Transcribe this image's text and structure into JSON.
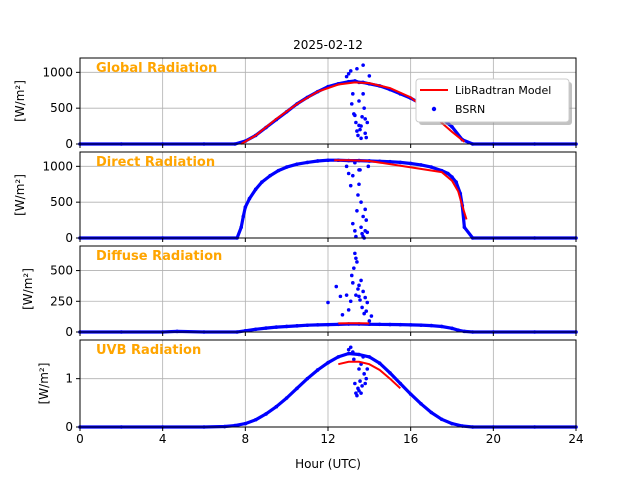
{
  "figure": {
    "title": "2025-02-12",
    "xlabel": "Hour (UTC)",
    "xticks": [
      "0",
      "4",
      "8",
      "12",
      "16",
      "20",
      "24"
    ],
    "legend": {
      "model_label": "LibRadtran Model",
      "obs_label": "BSRN",
      "placement": "upper-right of first panel"
    },
    "colors": {
      "model": "#ff0000",
      "obs": "#0000ff",
      "panel_title": "#ffa500",
      "grid": "#b0b0b0"
    }
  },
  "chart_data": [
    {
      "type": "scatter",
      "title": "Global Radiation",
      "ylabel": "[W/m²]",
      "xlim": [
        0,
        24
      ],
      "ylim": [
        0,
        1200
      ],
      "yticks": [
        "0",
        "500",
        "1000"
      ],
      "grid": true,
      "series": [
        {
          "name": "LibRadtran Model",
          "style": "line",
          "x": [
            7.8,
            8.5,
            9.5,
            10.5,
            11.5,
            12.5,
            13.3,
            14.0,
            15.0,
            16.0,
            17.0,
            18.0,
            18.6
          ],
          "y": [
            0,
            120,
            350,
            560,
            730,
            830,
            860,
            850,
            780,
            650,
            420,
            170,
            30
          ]
        },
        {
          "name": "BSRN",
          "style": "points",
          "x": [
            0,
            2,
            4,
            6,
            7.5,
            8,
            8.5,
            9,
            9.5,
            10,
            10.5,
            11,
            11.5,
            12,
            12.5,
            13,
            13.3,
            13.5,
            13.7,
            14,
            14.5,
            15,
            15.5,
            16,
            16.5,
            17,
            17.5,
            18,
            18.5,
            19,
            20,
            22,
            24
          ],
          "y": [
            0,
            0,
            0,
            0,
            0,
            40,
            120,
            230,
            340,
            450,
            560,
            650,
            730,
            800,
            840,
            870,
            880,
            860,
            860,
            840,
            810,
            760,
            700,
            640,
            560,
            470,
            360,
            240,
            60,
            0,
            0,
            0,
            0
          ],
          "scatter_x": [
            12.9,
            13.0,
            13.1,
            13.2,
            13.3,
            13.35,
            13.4,
            13.45,
            13.5,
            13.55,
            13.6,
            13.65,
            13.7,
            13.75,
            13.8,
            13.85,
            13.9,
            14.0,
            13.15,
            13.25,
            13.5,
            13.6,
            13.7,
            13.8,
            13.4
          ],
          "scatter_y": [
            940,
            980,
            1020,
            700,
            400,
            300,
            180,
            120,
            600,
            200,
            250,
            380,
            1100,
            500,
            150,
            90,
            300,
            950,
            560,
            420,
            260,
            80,
            700,
            350,
            1050
          ]
        }
      ]
    },
    {
      "type": "scatter",
      "title": "Direct Radiation",
      "ylabel": "[W/m²]",
      "xlim": [
        0,
        24
      ],
      "ylim": [
        0,
        1200
      ],
      "yticks": [
        "0",
        "500",
        "1000"
      ],
      "grid": true,
      "series": [
        {
          "name": "LibRadtran Model",
          "style": "line",
          "x": [
            12.3,
            13.0,
            13.6,
            14.0,
            17.5,
            18.0,
            18.3,
            18.5,
            18.7
          ],
          "y": [
            1085,
            1085,
            1080,
            1075,
            920,
            800,
            650,
            450,
            260
          ]
        },
        {
          "name": "BSRN",
          "style": "points",
          "x": [
            0,
            4,
            7.6,
            7.8,
            7.9,
            8.0,
            8.2,
            8.5,
            8.8,
            9.2,
            9.6,
            10.0,
            10.5,
            11.0,
            11.5,
            12.0,
            12.5,
            13.0,
            13.5,
            14.0,
            14.5,
            15.0,
            15.5,
            16.0,
            16.5,
            17.0,
            17.5,
            17.8,
            18.0,
            18.2,
            18.4,
            18.5,
            18.6,
            19,
            22,
            24
          ],
          "y": [
            0,
            0,
            0,
            150,
            300,
            430,
            550,
            680,
            780,
            870,
            940,
            990,
            1030,
            1055,
            1075,
            1085,
            1085,
            1080,
            1080,
            1075,
            1070,
            1065,
            1055,
            1040,
            1020,
            990,
            940,
            900,
            850,
            780,
            620,
            450,
            150,
            0,
            0,
            0
          ],
          "scatter_x": [
            12.9,
            13.0,
            13.1,
            13.2,
            13.3,
            13.35,
            13.4,
            13.45,
            13.5,
            13.55,
            13.6,
            13.65,
            13.7,
            13.75,
            13.8,
            13.85,
            13.9,
            13.95,
            13.2,
            13.3,
            13.6,
            13.7,
            13.8,
            13.5
          ],
          "scatter_y": [
            1000,
            900,
            730,
            200,
            100,
            20,
            380,
            600,
            750,
            950,
            150,
            60,
            20,
            0,
            400,
            250,
            80,
            1000,
            870,
            1050,
            500,
            300,
            100,
            950
          ]
        }
      ]
    },
    {
      "type": "scatter",
      "title": "Diffuse Radiation",
      "ylabel": "[W/m²]",
      "xlim": [
        0,
        24
      ],
      "ylim": [
        0,
        700
      ],
      "yticks": [
        "0",
        "250",
        "500"
      ],
      "grid": true,
      "series": [
        {
          "name": "LibRadtran Model",
          "style": "line",
          "x": [
            12.5,
            13.0,
            13.5,
            14.0
          ],
          "y": [
            70,
            72,
            72,
            70
          ]
        },
        {
          "name": "BSRN",
          "style": "points",
          "x": [
            0,
            2,
            4,
            4.7,
            6,
            7.6,
            8.0,
            8.5,
            9.0,
            9.5,
            10.0,
            10.5,
            11.0,
            11.5,
            12.0,
            12.5,
            13.0,
            13.5,
            14.0,
            14.5,
            15.0,
            15.5,
            16.0,
            16.5,
            17.0,
            17.5,
            18.0,
            18.3,
            18.6,
            19,
            20,
            22,
            24
          ],
          "y": [
            0,
            0,
            0,
            5,
            0,
            0,
            10,
            22,
            32,
            40,
            45,
            50,
            55,
            58,
            60,
            62,
            65,
            65,
            63,
            62,
            61,
            60,
            58,
            56,
            52,
            45,
            30,
            15,
            5,
            0,
            0,
            0,
            0
          ],
          "scatter_x": [
            12.0,
            12.4,
            12.6,
            12.7,
            12.9,
            13.0,
            13.1,
            13.2,
            13.25,
            13.3,
            13.35,
            13.4,
            13.45,
            13.5,
            13.55,
            13.6,
            13.65,
            13.7,
            13.75,
            13.8,
            13.85,
            13.9,
            14.0,
            14.1,
            13.15,
            13.35,
            13.5
          ],
          "scatter_y": [
            240,
            370,
            290,
            140,
            300,
            180,
            250,
            400,
            520,
            640,
            300,
            570,
            350,
            290,
            260,
            420,
            200,
            330,
            150,
            280,
            170,
            240,
            90,
            130,
            460,
            600,
            380
          ]
        }
      ]
    },
    {
      "type": "scatter",
      "title": "UVB Radiation",
      "ylabel": "[W/m²]",
      "xlim": [
        0,
        24
      ],
      "ylim": [
        0,
        1.8
      ],
      "yticks": [
        "0",
        "1"
      ],
      "grid": true,
      "series": [
        {
          "name": "LibRadtran Model",
          "style": "line",
          "x": [
            12.5,
            13.0,
            13.5,
            14.0,
            14.5,
            15.0,
            15.5
          ],
          "y": [
            1.3,
            1.35,
            1.35,
            1.3,
            1.18,
            1.0,
            0.8
          ]
        },
        {
          "name": "BSRN",
          "style": "points",
          "x": [
            0,
            2,
            4,
            6,
            7.0,
            7.5,
            8.0,
            8.5,
            9.0,
            9.5,
            10.0,
            10.5,
            11.0,
            11.5,
            12.0,
            12.5,
            13.0,
            13.5,
            14.0,
            14.5,
            15.0,
            15.5,
            16.0,
            16.5,
            17.0,
            17.5,
            18.0,
            18.5,
            19.0,
            20.0,
            22,
            24
          ],
          "y": [
            0,
            0,
            0,
            0,
            0.01,
            0.03,
            0.07,
            0.15,
            0.27,
            0.42,
            0.6,
            0.8,
            1.0,
            1.18,
            1.33,
            1.45,
            1.52,
            1.5,
            1.45,
            1.32,
            1.12,
            0.9,
            0.68,
            0.48,
            0.3,
            0.16,
            0.07,
            0.02,
            0.0,
            0,
            0,
            0
          ],
          "scatter_x": [
            13.0,
            13.1,
            13.2,
            13.3,
            13.35,
            13.4,
            13.45,
            13.5,
            13.55,
            13.6,
            13.65,
            13.7,
            13.75,
            13.8,
            13.85,
            13.9,
            13.25,
            13.5,
            13.6
          ],
          "scatter_y": [
            1.6,
            1.65,
            1.55,
            0.9,
            0.7,
            0.65,
            0.8,
            1.2,
            0.95,
            0.7,
            0.85,
            1.45,
            1.1,
            0.9,
            1.0,
            1.2,
            1.4,
            0.75,
            1.3
          ]
        }
      ]
    }
  ]
}
